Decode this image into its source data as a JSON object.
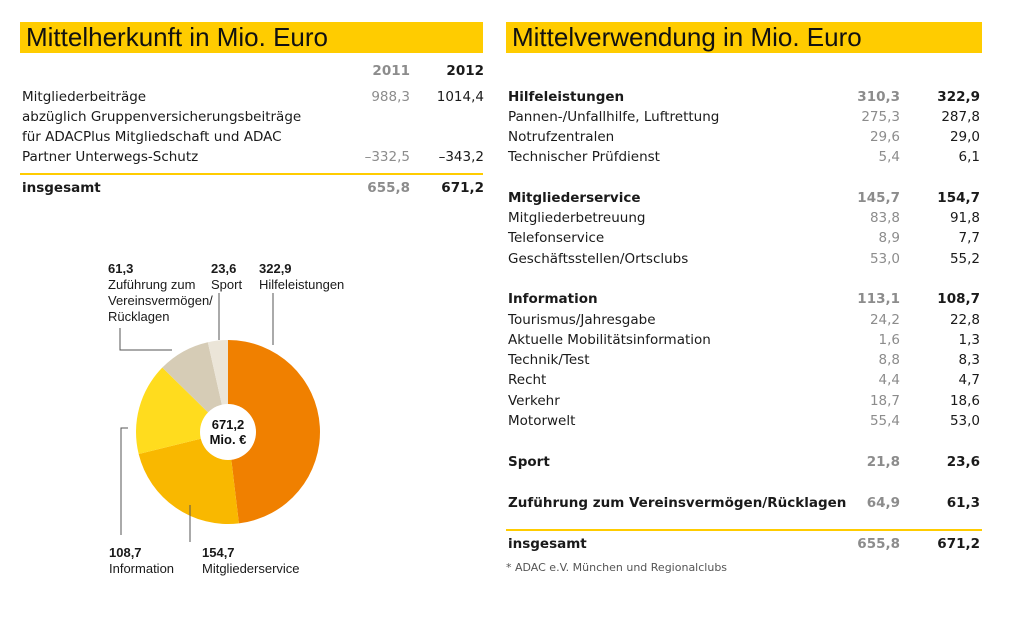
{
  "left": {
    "title": "Mittelherkunft in Mio. Euro",
    "years": [
      "2011",
      "2012"
    ],
    "rows": [
      {
        "label": "Mitgliederbeiträge",
        "v2011": "988,3",
        "v2012": "1014,4"
      },
      {
        "label": "abzüglich Gruppenversicherungsbeiträge",
        "v2011": "",
        "v2012": ""
      },
      {
        "label": "für ADACPlus Mitgliedschaft und ADAC",
        "v2011": "",
        "v2012": ""
      },
      {
        "label": "Partner Unterwegs-Schutz",
        "v2011": "–332,5",
        "v2012": "–343,2"
      }
    ],
    "total": {
      "label": "insgesamt",
      "v2011": "655,8",
      "v2012": "671,2"
    }
  },
  "right": {
    "title": "Mittelverwendung in Mio. Euro",
    "rows": [
      {
        "label": "Hilfeleistungen",
        "v2011": "310,3",
        "v2012": "322,9",
        "bold": true
      },
      {
        "label": "Pannen-/Unfallhilfe, Luftrettung",
        "v2011": "275,3",
        "v2012": "287,8"
      },
      {
        "label": "Notrufzentralen",
        "v2011": "29,6",
        "v2012": "29,0"
      },
      {
        "label": "Technischer Prüfdienst",
        "v2011": "5,4",
        "v2012": "6,1"
      },
      {
        "label": "Mitgliederservice",
        "v2011": "145,7",
        "v2012": "154,7",
        "bold": true
      },
      {
        "label": "Mitgliederbetreuung",
        "v2011": "83,8",
        "v2012": "91,8"
      },
      {
        "label": "Telefonservice",
        "v2011": "8,9",
        "v2012": "7,7"
      },
      {
        "label": "Geschäftsstellen/Ortsclubs",
        "v2011": "53,0",
        "v2012": "55,2"
      },
      {
        "label": "Information",
        "v2011": "113,1",
        "v2012": "108,7",
        "bold": true
      },
      {
        "label": "Tourismus/Jahresgabe",
        "v2011": "24,2",
        "v2012": "22,8"
      },
      {
        "label": "Aktuelle Mobilitätsinformation",
        "v2011": "1,6",
        "v2012": "1,3"
      },
      {
        "label": "Technik/Test",
        "v2011": "8,8",
        "v2012": "8,3"
      },
      {
        "label": "Recht",
        "v2011": "4,4",
        "v2012": "4,7"
      },
      {
        "label": "Verkehr",
        "v2011": "18,7",
        "v2012": "18,6"
      },
      {
        "label": "Motorwelt",
        "v2011": "55,4",
        "v2012": "53,0"
      },
      {
        "label": "Sport",
        "v2011": "21,8",
        "v2012": "23,6",
        "bold": true
      },
      {
        "label": "Zuführung zum Vereinsvermögen/Rücklagen",
        "v2011": "64,9",
        "v2012": "61,3",
        "bold": true
      }
    ],
    "total": {
      "label": "insgesamt",
      "v2011": "655,8",
      "v2012": "671,2"
    },
    "footnote": "* ADAC e.V. München und Regionalclubs"
  },
  "chart_data": {
    "type": "pie",
    "center_value": "671,2",
    "center_unit": "Mio. €",
    "slices": [
      {
        "name": "Hilfeleistungen",
        "value": 322.9,
        "label": "322,9",
        "color": "#f08000"
      },
      {
        "name": "Mitgliederservice",
        "value": 154.7,
        "label": "154,7",
        "color": "#f9b800"
      },
      {
        "name": "Information",
        "value": 108.7,
        "label": "108,7",
        "color": "#ffdc1e"
      },
      {
        "name": "Zuführung zum Vereinsvermögen/ Rücklagen",
        "value": 61.3,
        "label": "61,3",
        "color": "#d6ccb6"
      },
      {
        "name": "Sport",
        "value": 23.6,
        "label": "23,6",
        "color": "#ebe5d8"
      }
    ]
  }
}
